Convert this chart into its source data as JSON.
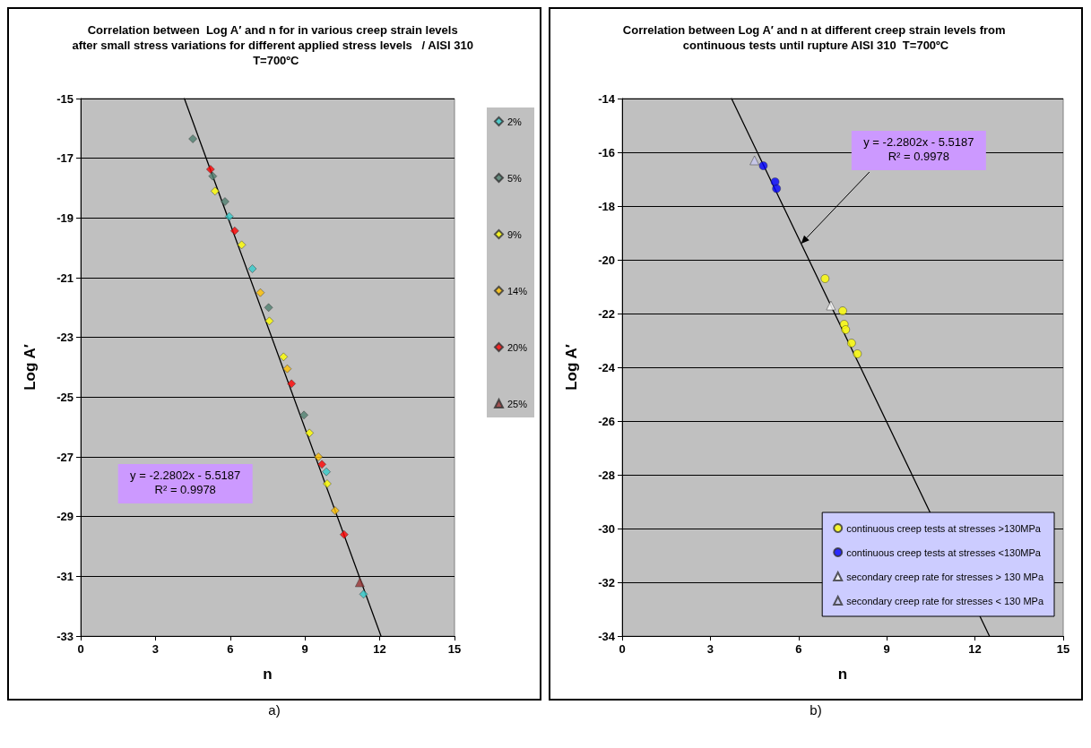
{
  "chart_data": [
    {
      "type": "scatter",
      "title": "Correlation between  Log A′ and n for in various creep strain levels after small stress variations for different applied stress levels   / AISI 310  T=700ºC",
      "xlabel": "n",
      "ylabel": "Log A′",
      "xlim": [
        0,
        15
      ],
      "ylim": [
        -33,
        -15
      ],
      "xticks": [
        0,
        3,
        6,
        9,
        12,
        15
      ],
      "yticks": [
        -33,
        -31,
        -29,
        -27,
        -25,
        -23,
        -21,
        -19,
        -17,
        -15
      ],
      "grid": "y",
      "legend": "right",
      "annotations": [
        "y = -2.2802x - 5.5187",
        "R² = 0.9978",
        "a)"
      ],
      "series": [
        {
          "name": "2%",
          "color": "#33cccc",
          "marker": "diamond",
          "x": [
            5.96,
            6.89,
            9.86,
            11.35
          ],
          "values": [
            -18.95,
            -20.7,
            -27.5,
            -31.6
          ]
        },
        {
          "name": "5%",
          "color": "#4f7f6f",
          "marker": "diamond",
          "x": [
            4.5,
            5.3,
            5.79,
            7.54,
            8.96
          ],
          "values": [
            -16.35,
            -17.6,
            -18.45,
            -22.0,
            -25.6
          ]
        },
        {
          "name": "9%",
          "color": "#ffff00",
          "marker": "diamond",
          "x": [
            5.39,
            6.46,
            7.57,
            8.14,
            9.18,
            9.89
          ],
          "values": [
            -18.1,
            -19.9,
            -22.45,
            -23.65,
            -26.2,
            -27.9
          ]
        },
        {
          "name": "14%",
          "color": "#ffc000",
          "marker": "diamond",
          "x": [
            7.21,
            8.29,
            9.54,
            10.21
          ],
          "values": [
            -21.5,
            -24.05,
            -27.0,
            -28.8
          ]
        },
        {
          "name": "20%",
          "color": "#ff0000",
          "marker": "diamond",
          "x": [
            5.21,
            6.18,
            8.46,
            9.68,
            10.57
          ],
          "values": [
            -17.37,
            -19.43,
            -24.55,
            -27.25,
            -29.6
          ]
        },
        {
          "name": "25%",
          "color": "#993333",
          "marker": "triangle",
          "x": [
            11.2
          ],
          "values": [
            -31.2
          ]
        },
        {
          "type": "line",
          "color": "#000000",
          "marker": "none",
          "x": [
            4.16,
            12.05
          ],
          "values": [
            -15,
            -33
          ]
        }
      ]
    },
    {
      "type": "scatter",
      "title": "Correlation between Log A′ and n at different creep strain levels from continuous tests until rupture AISI 310  T=700ºC",
      "xlabel": "n",
      "ylabel": "Log A′",
      "xlim": [
        0,
        15
      ],
      "ylim": [
        -34,
        -14
      ],
      "xticks": [
        0,
        3,
        6,
        9,
        12,
        15
      ],
      "yticks": [
        -34,
        -32,
        -30,
        -28,
        -26,
        -24,
        -22,
        -20,
        -18,
        -16,
        -14
      ],
      "grid": "y",
      "legend": "bottom right",
      "annotations": [
        "y = -2.2802x - 5.5187",
        "R² = 0.9978",
        "b)"
      ],
      "series": [
        {
          "name": "continuous creep tests at stresses >130MPa",
          "color": "#ffff00",
          "marker": "circle",
          "x": [
            6.9,
            7.5,
            7.55,
            7.6,
            7.8,
            8.0
          ],
          "values": [
            -20.7,
            -21.9,
            -22.4,
            -22.6,
            -23.1,
            -23.5
          ]
        },
        {
          "name": "continuous creep tests at stresses <130MPa",
          "color": "#0000ff",
          "marker": "circle",
          "x": [
            4.8,
            5.2,
            5.25
          ],
          "values": [
            -16.5,
            -17.1,
            -17.35
          ]
        },
        {
          "name": "secondary creep rate for stresses > 130 MPa",
          "color": "#ffffff",
          "marker": "triangle",
          "x": [
            7.1
          ],
          "values": [
            -21.7
          ]
        },
        {
          "name": "secondary creep rate for stresses < 130 MPa",
          "color": "#c8c8f0",
          "marker": "triangle",
          "x": [
            4.5
          ],
          "values": [
            -16.3
          ]
        },
        {
          "type": "line",
          "color": "#000000",
          "marker": "none",
          "x": [
            3.72,
            12.49
          ],
          "values": [
            -14,
            -34
          ]
        }
      ]
    }
  ]
}
